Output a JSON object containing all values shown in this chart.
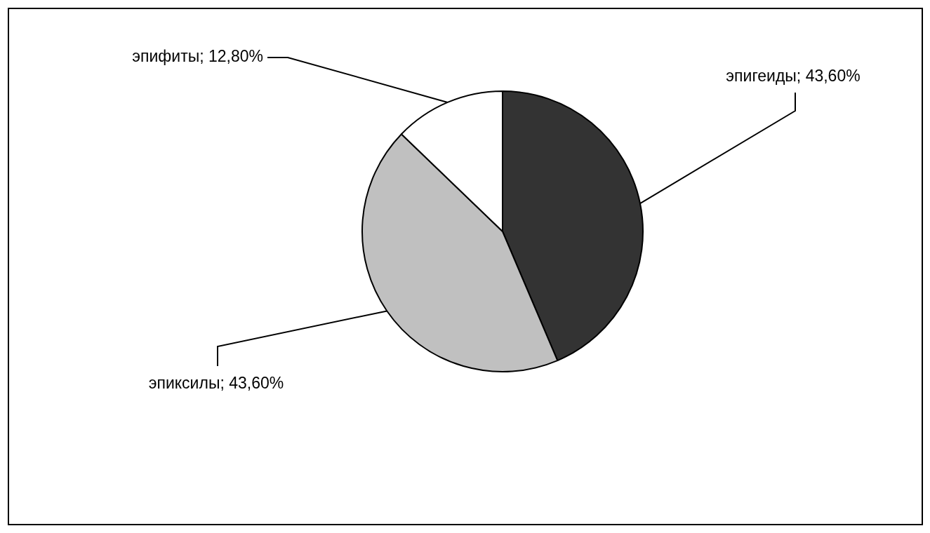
{
  "chart_data": {
    "type": "pie",
    "categories": [
      "эпигеиды",
      "эпиксилы",
      "эпифиты"
    ],
    "values": [
      43.6,
      43.6,
      12.8
    ],
    "value_labels": [
      "43,60%",
      "43,60%",
      "12,80%"
    ],
    "colors": [
      "#333333",
      "#c0c0c0",
      "#ffffff"
    ],
    "legend": false
  }
}
